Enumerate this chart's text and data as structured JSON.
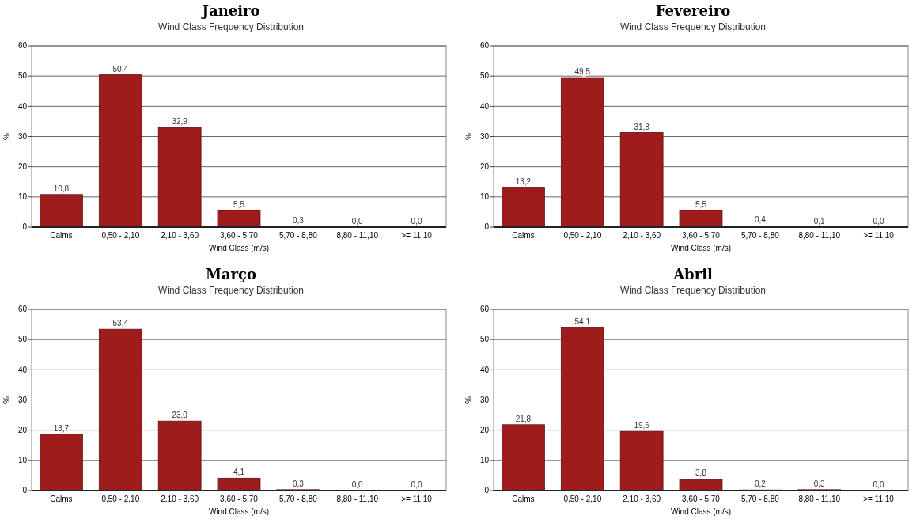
{
  "chart_data": [
    {
      "type": "bar",
      "title": "Janeiro",
      "subtitle": "Wind Class Frequency Distribution",
      "xlabel": "Wind Class (m/s)",
      "ylabel": "%",
      "categories": [
        "Calms",
        "0,50 - 2,10",
        "2,10 - 3,60",
        "3,60 - 5,70",
        "5,70 - 8,80",
        "8,80 - 11,10",
        ">= 11,10"
      ],
      "values": [
        10.8,
        50.4,
        32.9,
        5.5,
        0.3,
        0.0,
        0.0
      ],
      "value_labels": [
        "10,8",
        "50,4",
        "32,9",
        "5,5",
        "0,3",
        "0,0",
        "0,0"
      ],
      "color": "#9e1c1c",
      "ylim": [
        0,
        60
      ],
      "yticks": [
        0,
        10,
        20,
        30,
        40,
        50,
        60
      ],
      "grid": "y"
    },
    {
      "type": "bar",
      "title": "Fevereiro",
      "subtitle": "Wind Class Frequency Distribution",
      "xlabel": "Wind Class (m/s)",
      "ylabel": "%",
      "categories": [
        "Calms",
        "0,50 - 2,10",
        "2,10 - 3,60",
        "3,60 - 5,70",
        "5,70 - 8,80",
        "8,80 - 11,10",
        ">= 11,10"
      ],
      "values": [
        13.2,
        49.5,
        31.3,
        5.5,
        0.4,
        0.1,
        0.0
      ],
      "value_labels": [
        "13,2",
        "49,5",
        "31,3",
        "5,5",
        "0,4",
        "0,1",
        "0,0"
      ],
      "color": "#9e1c1c",
      "ylim": [
        0,
        60
      ],
      "yticks": [
        0,
        10,
        20,
        30,
        40,
        50,
        60
      ],
      "grid": "y"
    },
    {
      "type": "bar",
      "title": "Março",
      "subtitle": "Wind Class Frequency Distribution",
      "xlabel": "Wind Class (m/s)",
      "ylabel": "%",
      "categories": [
        "Calms",
        "0,50 - 2,10",
        "2,10 - 3,60",
        "3,60 - 5,70",
        "5,70 - 8,80",
        "8,80 - 11,10",
        ">= 11,10"
      ],
      "values": [
        18.7,
        53.4,
        23.0,
        4.1,
        0.3,
        0.0,
        0.0
      ],
      "value_labels": [
        "18,7",
        "53,4",
        "23,0",
        "4,1",
        "0,3",
        "0,0",
        "0,0"
      ],
      "color": "#9e1c1c",
      "ylim": [
        0,
        60
      ],
      "yticks": [
        0,
        10,
        20,
        30,
        40,
        50,
        60
      ],
      "grid": "y"
    },
    {
      "type": "bar",
      "title": "Abril",
      "subtitle": "Wind Class Frequency Distribution",
      "xlabel": "Wind Class (m/s)",
      "ylabel": "%",
      "categories": [
        "Calms",
        "0,50 - 2,10",
        "2,10 - 3,60",
        "3,60 - 5,70",
        "5,70 - 8,80",
        "8,80 - 11,10",
        ">= 11,10"
      ],
      "values": [
        21.8,
        54.1,
        19.6,
        3.8,
        0.2,
        0.3,
        0.0
      ],
      "value_labels": [
        "21,8",
        "54,1",
        "19,6",
        "3,8",
        "0,2",
        "0,3",
        "0,0"
      ],
      "color": "#9e1c1c",
      "ylim": [
        0,
        60
      ],
      "yticks": [
        0,
        10,
        20,
        30,
        40,
        50,
        60
      ],
      "grid": "y"
    }
  ]
}
